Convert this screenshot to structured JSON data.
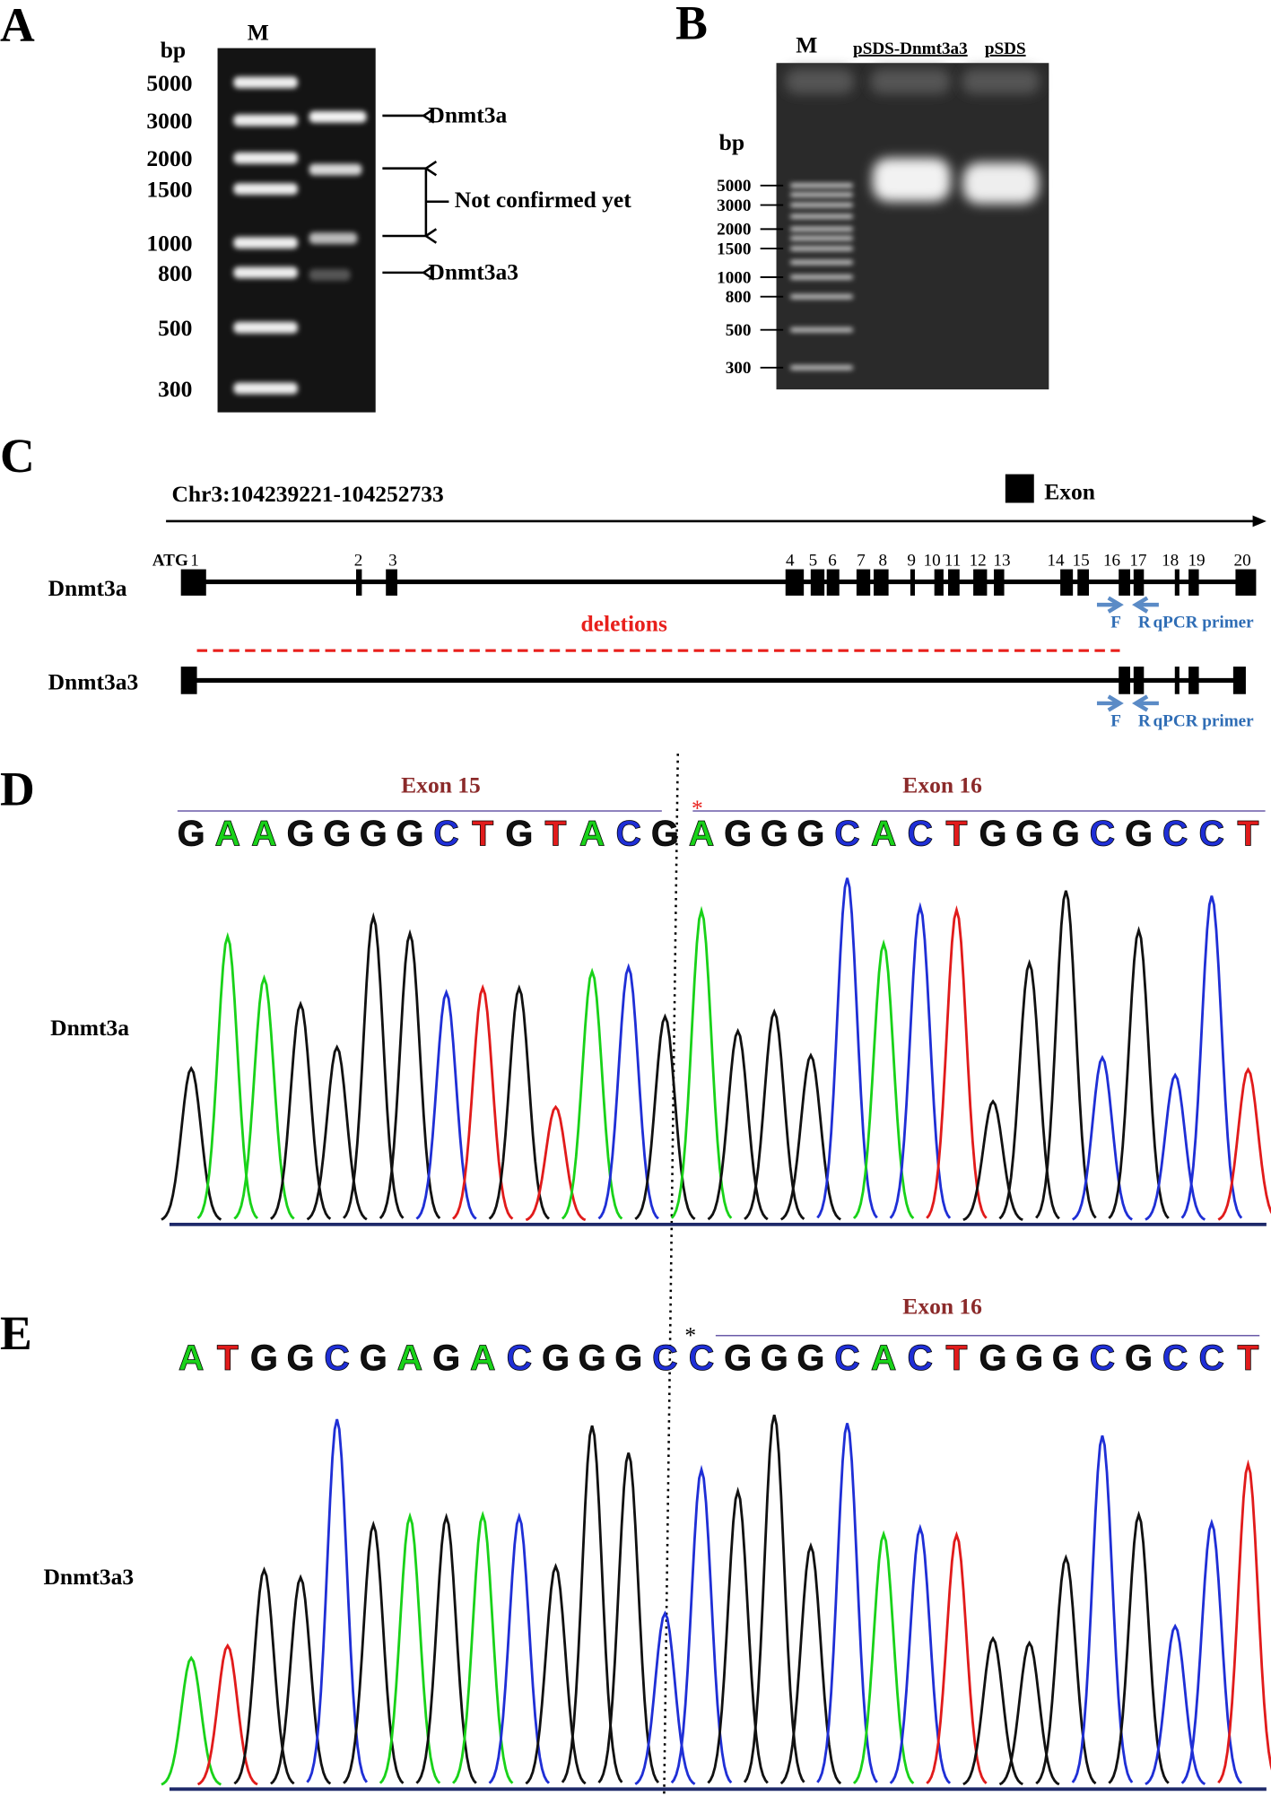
{
  "panels": {
    "a": {
      "label": "A",
      "marker": "M",
      "bp": "bp",
      "ladder": [
        "5000",
        "3000",
        "2000",
        "1500",
        "1000",
        "800",
        "500",
        "300"
      ],
      "annotations": [
        "Dnmt3a",
        "Not confirmed  yet",
        "Dnmt3a3"
      ]
    },
    "b": {
      "label": "B",
      "marker": "M",
      "lanes": [
        "pSDS-Dnmt3a3",
        "pSDS"
      ],
      "bp": "bp",
      "ladder": [
        "5000",
        "3000",
        "2000",
        "1500",
        "1000",
        "800",
        "500",
        "300"
      ]
    },
    "c": {
      "label": "C",
      "region": "Chr3:104239221-104252733",
      "legend": "Exon",
      "start_codon": "ATG",
      "transcripts": [
        "Dnmt3a",
        "Dnmt3a3"
      ],
      "exon_numbers": [
        "1",
        "2",
        "3",
        "4",
        "5",
        "6",
        "7",
        "8",
        "9",
        "10",
        "11",
        "12",
        "13",
        "14",
        "15",
        "16",
        "17",
        "18",
        "19",
        "20"
      ],
      "deletions": "deletions",
      "primers": {
        "forward": "F",
        "reverse": "R",
        "label": "qPCR primer"
      }
    },
    "d": {
      "label": "D",
      "exon_left": "Exon 15",
      "exon_right": "Exon 16",
      "marker": "*",
      "sample": "Dnmt3a",
      "sequence": [
        "G",
        "A",
        "A",
        "G",
        "G",
        "G",
        "G",
        "C",
        "T",
        "G",
        "T",
        "A",
        "C",
        "G",
        "A",
        "G",
        "G",
        "G",
        "C",
        "A",
        "C",
        "T",
        "G",
        "G",
        "G",
        "C",
        "G",
        "C",
        "C",
        "T"
      ]
    },
    "e": {
      "label": "E",
      "exon_right": "Exon 16",
      "marker": "*",
      "sample": "Dnmt3a3",
      "sequence": [
        "A",
        "T",
        "G",
        "G",
        "C",
        "G",
        "A",
        "G",
        "A",
        "C",
        "G",
        "G",
        "G",
        "C",
        "C",
        "G",
        "G",
        "G",
        "C",
        "A",
        "C",
        "T",
        "G",
        "G",
        "G",
        "C",
        "G",
        "C",
        "C",
        "T"
      ]
    }
  }
}
